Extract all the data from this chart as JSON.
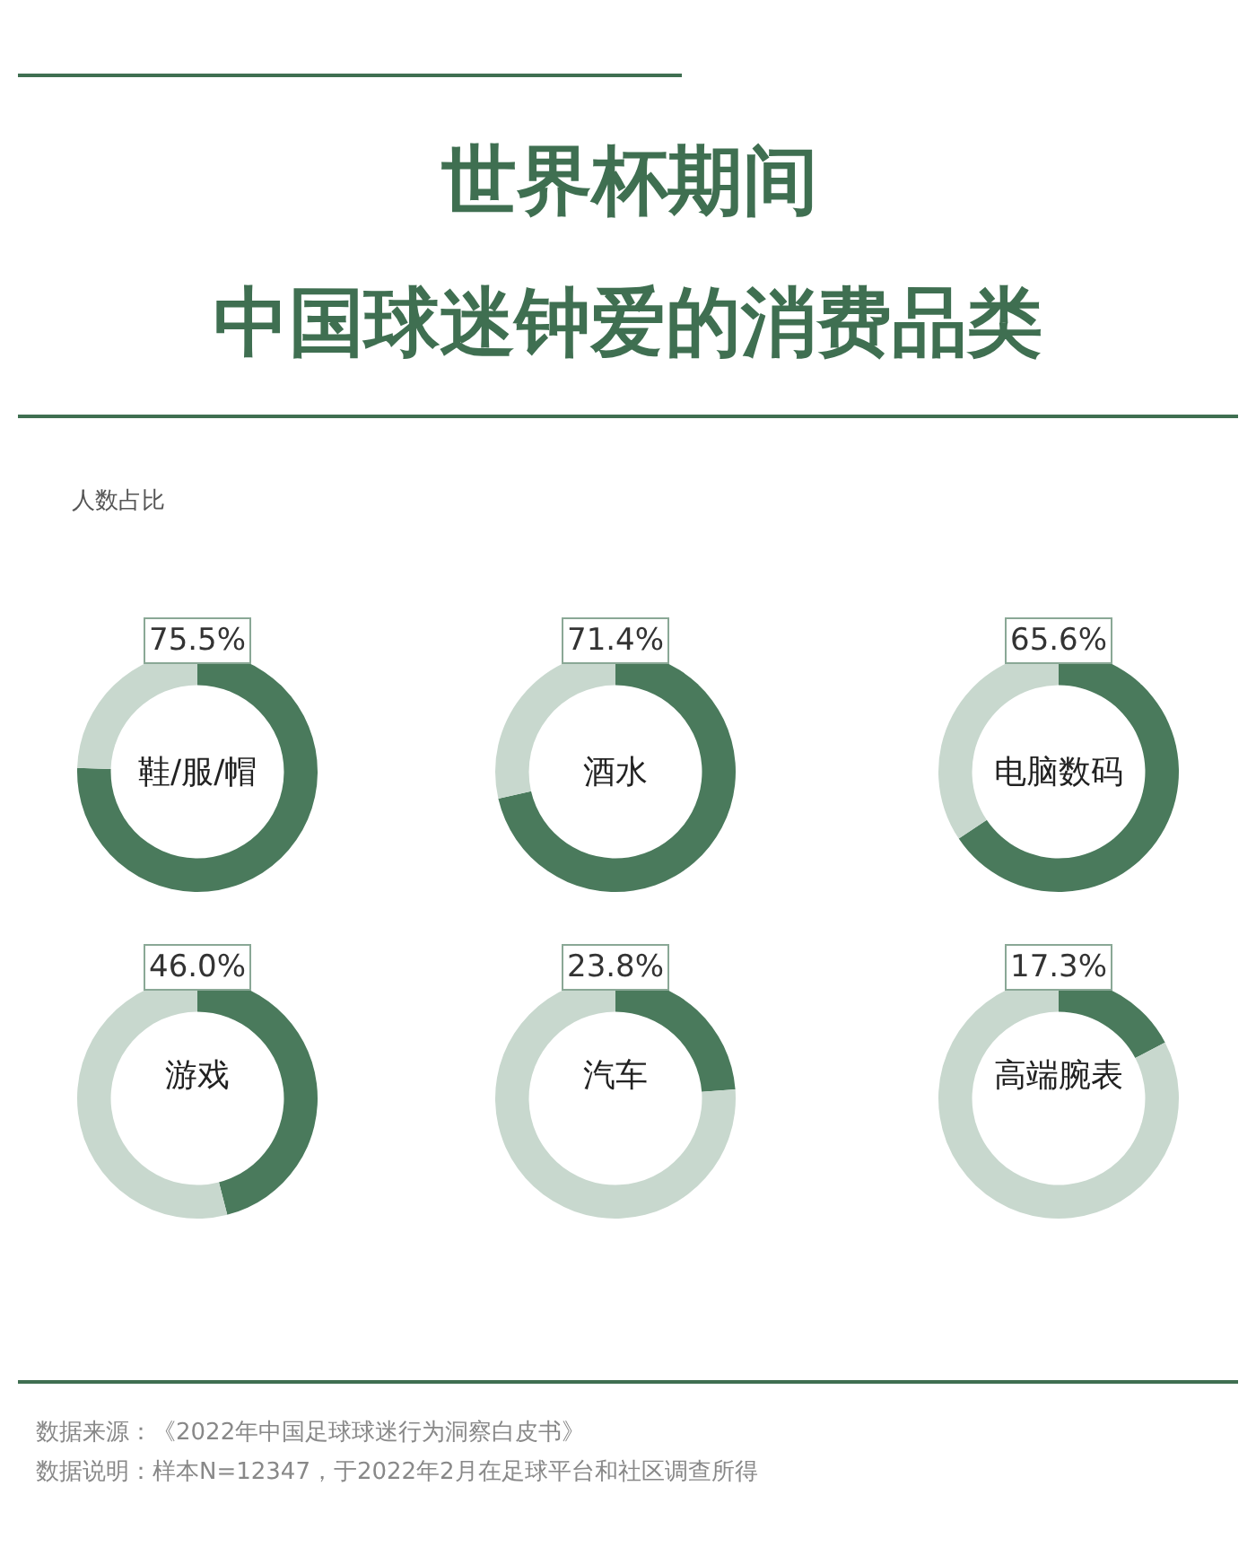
{
  "chart_data": [
    {
      "type": "other",
      "title": "世界杯期间",
      "subtitle": "中国球迷钟爱的消费品类",
      "ylabel": "人数占比",
      "annotations": [
        "数据来源：《2022年中国足球球迷行为洞察白皮书》",
        "数据说明：样本N=12347，于2022年2月在足球平台和社区调查所得"
      ]
    },
    {
      "type": "donut",
      "title": "鞋/服/帽",
      "categories": [
        null,
        null
      ],
      "values": [
        75.5,
        24.5
      ],
      "colors": [
        "#4a7a5c",
        "#c8d8ce"
      ],
      "value_labels": [
        "75.5%",
        null
      ]
    },
    {
      "type": "donut",
      "title": "酒水",
      "categories": [
        null,
        null
      ],
      "values": [
        71.4,
        28.6
      ],
      "colors": [
        "#4a7a5c",
        "#c8d8ce"
      ],
      "value_labels": [
        "71.4%",
        null
      ]
    },
    {
      "type": "donut",
      "title": "电脑数码",
      "categories": [
        null,
        null
      ],
      "values": [
        65.6,
        34.4
      ],
      "colors": [
        "#4a7a5c",
        "#c8d8ce"
      ],
      "value_labels": [
        "65.6%",
        null
      ]
    },
    {
      "type": "donut",
      "title": "游戏",
      "categories": [
        null,
        null
      ],
      "values": [
        46.0,
        54.0
      ],
      "colors": [
        "#4a7a5c",
        "#c8d8ce"
      ],
      "value_labels": [
        "46.0%",
        null
      ]
    },
    {
      "type": "donut",
      "title": "汽车",
      "categories": [
        null,
        null
      ],
      "values": [
        23.8,
        76.2
      ],
      "colors": [
        "#4a7a5c",
        "#c8d8ce"
      ],
      "value_labels": [
        "23.8%",
        null
      ]
    },
    {
      "type": "donut",
      "title": "高端腕表",
      "categories": [
        null,
        null
      ],
      "values": [
        17.3,
        82.7
      ],
      "colors": [
        "#4a7a5c",
        "#c8d8ce"
      ],
      "value_labels": [
        "17.3%",
        null
      ]
    }
  ]
}
